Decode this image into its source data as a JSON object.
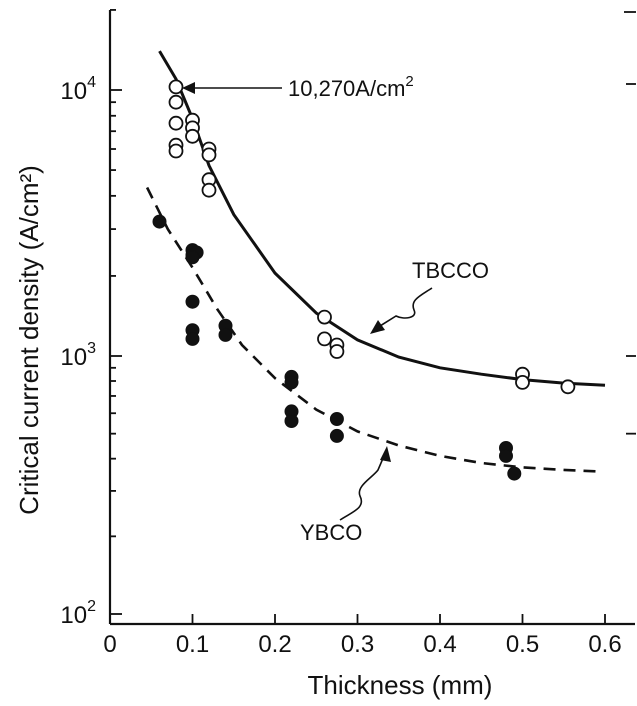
{
  "chart_data": {
    "type": "scatter",
    "title": "",
    "xlabel": "Thickness (mm)",
    "ylabel": "Critical current density (A/cm²)",
    "xlim": [
      0,
      0.65
    ],
    "ylim": [
      100,
      20000
    ],
    "y_scale": "log",
    "grid": false,
    "x_ticks": [
      0,
      0.1,
      0.2,
      0.3,
      0.4,
      0.5,
      0.6
    ],
    "x_tick_labels": [
      "0",
      "0.1",
      "0.2",
      "0.3",
      "0.4",
      "0.5",
      "0.6"
    ],
    "y_ticks": [
      100,
      1000,
      10000
    ],
    "y_tick_labels": [
      {
        "base": "10",
        "exp": "2"
      },
      {
        "base": "10",
        "exp": "3"
      },
      {
        "base": "10",
        "exp": "4"
      }
    ],
    "series": [
      {
        "name": "TBCCO",
        "marker": "open-circle",
        "fit_style": "solid",
        "points": [
          [
            0.08,
            10270
          ],
          [
            0.08,
            9000
          ],
          [
            0.08,
            7500
          ],
          [
            0.08,
            6200
          ],
          [
            0.08,
            5900
          ],
          [
            0.1,
            7700
          ],
          [
            0.1,
            7200
          ],
          [
            0.1,
            6700
          ],
          [
            0.12,
            6000
          ],
          [
            0.12,
            5700
          ],
          [
            0.12,
            4600
          ],
          [
            0.12,
            4200
          ],
          [
            0.26,
            1400
          ],
          [
            0.26,
            1160
          ],
          [
            0.275,
            1100
          ],
          [
            0.275,
            1040
          ],
          [
            0.5,
            850
          ],
          [
            0.5,
            790
          ],
          [
            0.555,
            760
          ]
        ],
        "fit": [
          [
            0.06,
            14000
          ],
          [
            0.08,
            11000
          ],
          [
            0.1,
            7800
          ],
          [
            0.12,
            5200
          ],
          [
            0.15,
            3400
          ],
          [
            0.2,
            2050
          ],
          [
            0.25,
            1450
          ],
          [
            0.3,
            1150
          ],
          [
            0.35,
            990
          ],
          [
            0.4,
            900
          ],
          [
            0.45,
            850
          ],
          [
            0.5,
            810
          ],
          [
            0.55,
            785
          ],
          [
            0.6,
            770
          ]
        ]
      },
      {
        "name": "YBCO",
        "marker": "filled-circle",
        "fit_style": "dashed",
        "points": [
          [
            0.06,
            3200
          ],
          [
            0.1,
            2500
          ],
          [
            0.1,
            2400
          ],
          [
            0.105,
            2450
          ],
          [
            0.1,
            2350
          ],
          [
            0.1,
            1600
          ],
          [
            0.1,
            1250
          ],
          [
            0.1,
            1160
          ],
          [
            0.14,
            1300
          ],
          [
            0.14,
            1200
          ],
          [
            0.22,
            830
          ],
          [
            0.22,
            790
          ],
          [
            0.22,
            610
          ],
          [
            0.22,
            560
          ],
          [
            0.275,
            570
          ],
          [
            0.275,
            490
          ],
          [
            0.48,
            440
          ],
          [
            0.48,
            410
          ],
          [
            0.49,
            350
          ]
        ],
        "fit": [
          [
            0.045,
            4300
          ],
          [
            0.07,
            3000
          ],
          [
            0.1,
            2150
          ],
          [
            0.13,
            1500
          ],
          [
            0.16,
            1100
          ],
          [
            0.2,
            820
          ],
          [
            0.25,
            620
          ],
          [
            0.3,
            510
          ],
          [
            0.35,
            450
          ],
          [
            0.4,
            410
          ],
          [
            0.45,
            385
          ],
          [
            0.5,
            370
          ],
          [
            0.55,
            362
          ],
          [
            0.59,
            357
          ]
        ]
      }
    ],
    "annotations": [
      {
        "name": "peak-value",
        "text": "10,270A/cm",
        "sup": "2",
        "target": [
          0.08,
          10270
        ]
      },
      {
        "name": "series-label-tbcco",
        "text": "TBCCO",
        "target": [
          0.3,
          1150
        ]
      },
      {
        "name": "series-label-ybco",
        "text": "YBCO",
        "target": [
          0.35,
          450
        ]
      }
    ]
  }
}
